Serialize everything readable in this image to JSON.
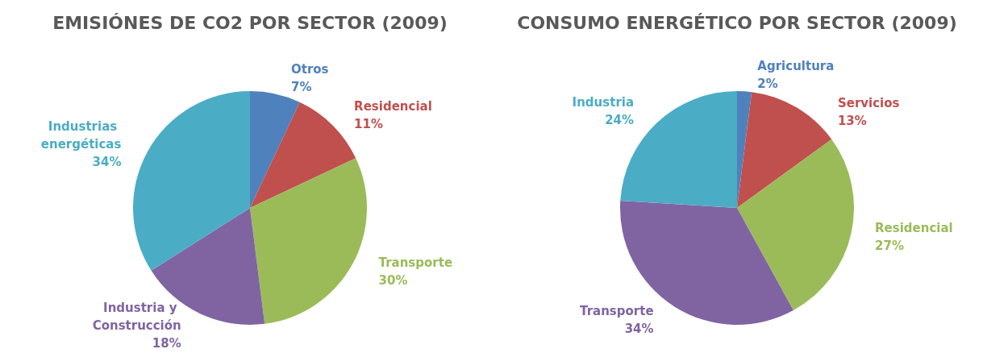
{
  "chart_data": [
    {
      "type": "pie",
      "title": "EMISIÓNES DE CO2 POR SECTOR (2009)",
      "categories": [
        "Otros",
        "Residencial",
        "Transporte",
        "Industria y Construcción",
        "Industrias energéticas"
      ],
      "values": [
        7,
        11,
        30,
        18,
        34
      ],
      "value_labels": [
        "7%",
        "11%",
        "30%",
        "18%",
        "34%"
      ],
      "colors": [
        "#4f81bd",
        "#c0504d",
        "#9bbb59",
        "#8064a2",
        "#4bacc6"
      ],
      "legend": false
    },
    {
      "type": "pie",
      "title": "CONSUMO ENERGÉTICO POR SECTOR (2009)",
      "categories": [
        "Agricultura",
        "Servicios",
        "Residencial",
        "Transporte",
        "Industria"
      ],
      "values": [
        2,
        13,
        27,
        34,
        24
      ],
      "value_labels": [
        "2%",
        "13%",
        "27%",
        "34%",
        "24%"
      ],
      "colors": [
        "#4f81bd",
        "#c0504d",
        "#9bbb59",
        "#8064a2",
        "#4bacc6"
      ],
      "legend": false
    }
  ]
}
